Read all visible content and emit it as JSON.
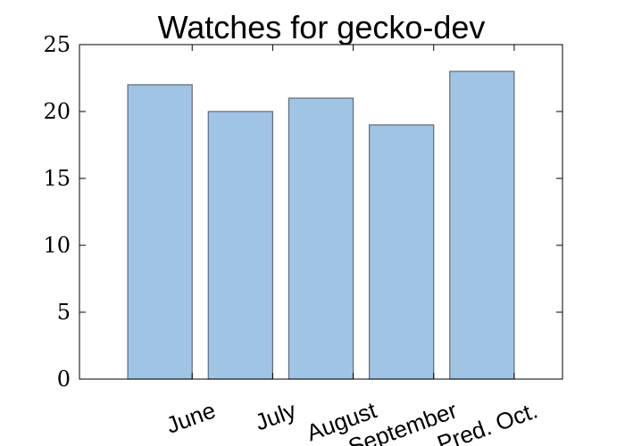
{
  "chart_data": {
    "type": "bar",
    "title": "Watches for gecko-dev",
    "categories": [
      "June",
      "July",
      "August",
      "September",
      "Pred. Oct."
    ],
    "values": [
      22,
      20,
      21,
      19,
      23
    ],
    "xlabel": "",
    "ylabel": "",
    "ylim": [
      0,
      25
    ],
    "yticks": [
      0,
      5,
      10,
      15,
      20,
      25
    ],
    "grid": false,
    "legend": "none",
    "bar_color": "#a1c3e4",
    "bar_edge_color": "#5f6b78",
    "tick_label_rotation_deg": -20
  }
}
